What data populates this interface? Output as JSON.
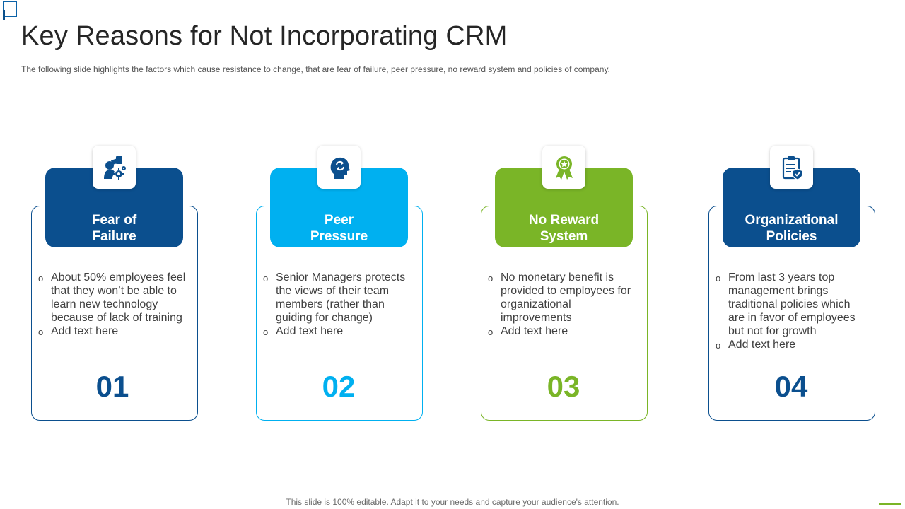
{
  "slide": {
    "title": "Key Reasons for Not Incorporating CRM",
    "subtitle": "The following  slide highlights the factors which cause resistance to change, that are fear of failure, peer pressure, no reward  system and policies of company."
  },
  "cards": [
    {
      "title_line1": "Fear of",
      "title_line2": "Failure",
      "icon": "worried-person-gear-icon",
      "color": "#0b4f8e",
      "bullets": [
        "About 50% employees feel that they won’t be able to learn new technology because of lack of training",
        "Add text here"
      ],
      "number": "01"
    },
    {
      "title_line1": "Peer",
      "title_line2": "Pressure",
      "icon": "head-arrows-icon",
      "color": "#00b0f0",
      "bullets": [
        "Senior Managers protects the views of their team members (rather than guiding for change)",
        "Add text here"
      ],
      "number": "02"
    },
    {
      "title_line1": "No Reward",
      "title_line2": "System",
      "icon": "award-ribbon-icon",
      "color": "#7ab527",
      "bullets": [
        "No monetary benefit is provided to employees for organizational improvements",
        "Add text here"
      ],
      "number": "03"
    },
    {
      "title_line1": "Organizational",
      "title_line2": "Policies",
      "icon": "clipboard-shield-icon",
      "color": "#0b4f8e",
      "bullets": [
        "From last 3 years top management brings traditional policies which are in favor of employees but not for growth",
        "Add text here"
      ],
      "number": "04"
    }
  ],
  "footer": {
    "text": "This slide is 100% editable. Adapt it to your needs and capture your audience's attention."
  }
}
